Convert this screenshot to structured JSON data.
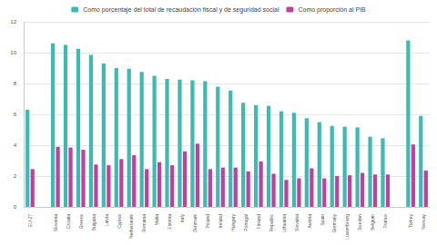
{
  "chart_data": {
    "type": "bar",
    "categories": [
      "EU-27",
      null,
      "Slovenia",
      "Croatia",
      "Greece",
      "Bulgaria",
      "Latvia",
      "Cyprus",
      "Netherlands",
      "Romania",
      "Malta",
      "Estonia",
      "Italy",
      "Denmark",
      "Poland",
      "Ireland",
      "Hungary",
      "Portugal",
      "Finland",
      "Republic",
      "Lithuania",
      "Slovakia",
      "Austria",
      "Spain",
      "Germany",
      "Luxembourg",
      "Sweden",
      "Belgium",
      "France",
      null,
      "Turkey",
      "Norway"
    ],
    "series": [
      {
        "name": "Como porcentaje del total de recaudación fiscal y de seguridad social",
        "color": "#3dbab4",
        "values": [
          6.3,
          null,
          10.6,
          10.5,
          10.25,
          9.85,
          9.3,
          9.0,
          8.95,
          8.75,
          8.5,
          8.3,
          8.25,
          8.2,
          8.15,
          7.8,
          7.55,
          6.75,
          6.6,
          6.55,
          6.2,
          6.1,
          5.75,
          5.5,
          5.25,
          5.2,
          5.15,
          4.55,
          4.45,
          null,
          10.8,
          5.9
        ]
      },
      {
        "name": "Como proporción al PIB",
        "color": "#c0409f",
        "values": [
          2.45,
          null,
          3.9,
          3.85,
          3.7,
          2.75,
          2.7,
          3.1,
          3.35,
          2.45,
          2.9,
          2.7,
          3.6,
          4.1,
          2.45,
          2.55,
          2.55,
          2.3,
          2.95,
          2.15,
          1.75,
          1.85,
          2.5,
          1.85,
          2.0,
          2.05,
          2.2,
          2.1,
          2.1,
          null,
          4.05,
          2.35
        ]
      }
    ],
    "ylim": [
      0,
      12
    ],
    "yticks": [
      0,
      2,
      4,
      6,
      8,
      10,
      12
    ],
    "grid": true,
    "legend": "top"
  }
}
